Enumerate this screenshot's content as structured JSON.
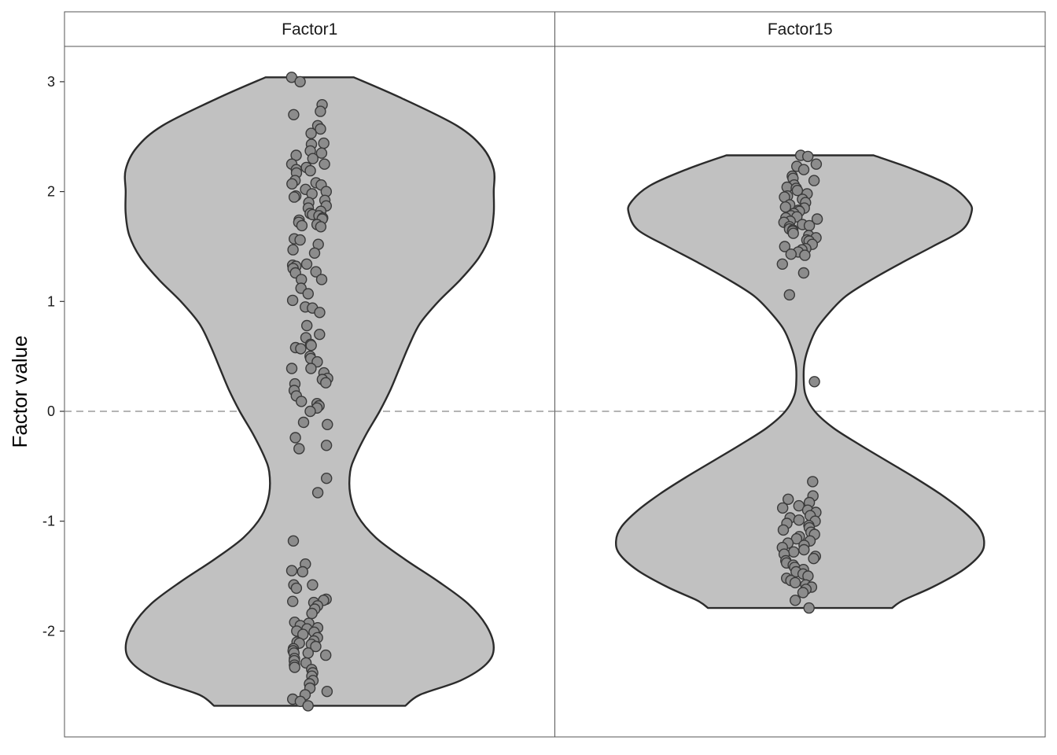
{
  "chart_data": {
    "type": "violin",
    "ylabel": "Factor value",
    "xlabel": "",
    "ylim": [
      -2.95,
      3.33
    ],
    "yticks": [
      3,
      2,
      1,
      0,
      -1,
      -2
    ],
    "ytick_labels": [
      "3",
      "2",
      "1",
      "0",
      "-1",
      "-2"
    ],
    "reference_line": {
      "y": 0,
      "style": "dashed",
      "color": "#888888"
    },
    "grid": false,
    "colors": {
      "violin_fill": "#c1c1c1",
      "violin_stroke": "#2b2b2b",
      "point_fill": "#8c8c8c",
      "point_stroke": "#3a3a3a"
    },
    "panels": [
      {
        "label": "Factor1",
        "range": [
          -2.68,
          3.04
        ],
        "density_profile": [
          [
            3.04,
            0.24
          ],
          [
            2.85,
            0.5
          ],
          [
            2.6,
            0.8
          ],
          [
            2.4,
            0.94
          ],
          [
            2.2,
            1.0
          ],
          [
            2.0,
            1.0
          ],
          [
            1.8,
            1.0
          ],
          [
            1.6,
            0.98
          ],
          [
            1.4,
            0.92
          ],
          [
            1.2,
            0.82
          ],
          [
            1.0,
            0.7
          ],
          [
            0.8,
            0.6
          ],
          [
            0.6,
            0.54
          ],
          [
            0.4,
            0.49
          ],
          [
            0.2,
            0.44
          ],
          [
            0.0,
            0.38
          ],
          [
            -0.2,
            0.31
          ],
          [
            -0.4,
            0.25
          ],
          [
            -0.55,
            0.22
          ],
          [
            -0.75,
            0.22
          ],
          [
            -0.95,
            0.26
          ],
          [
            -1.15,
            0.36
          ],
          [
            -1.35,
            0.52
          ],
          [
            -1.55,
            0.7
          ],
          [
            -1.75,
            0.86
          ],
          [
            -1.95,
            0.96
          ],
          [
            -2.15,
            1.0
          ],
          [
            -2.3,
            0.96
          ],
          [
            -2.45,
            0.82
          ],
          [
            -2.58,
            0.6
          ],
          [
            -2.68,
            0.52
          ]
        ],
        "points": [
          3.04,
          3.0,
          2.79,
          2.73,
          2.7,
          2.6,
          2.57,
          2.53,
          2.43,
          2.44,
          2.37,
          2.35,
          2.33,
          2.3,
          2.25,
          2.25,
          2.22,
          2.2,
          2.19,
          2.17,
          2.1,
          2.08,
          2.07,
          2.06,
          2.02,
          2.0,
          1.98,
          1.96,
          1.95,
          1.92,
          1.9,
          1.87,
          1.85,
          1.82,
          1.8,
          1.79,
          1.78,
          1.76,
          1.75,
          1.74,
          1.72,
          1.7,
          1.69,
          1.68,
          1.57,
          1.56,
          1.52,
          1.47,
          1.44,
          1.34,
          1.33,
          1.32,
          1.3,
          1.27,
          1.26,
          1.2,
          1.2,
          1.12,
          1.07,
          1.01,
          0.95,
          0.94,
          0.9,
          0.78,
          0.7,
          0.67,
          0.61,
          0.6,
          0.58,
          0.57,
          0.5,
          0.48,
          0.45,
          0.39,
          0.39,
          0.35,
          0.3,
          0.29,
          0.26,
          0.25,
          0.19,
          0.14,
          0.09,
          0.07,
          0.05,
          0.03,
          0.0,
          -0.1,
          -0.12,
          -0.24,
          -0.31,
          -0.34,
          -0.61,
          -0.74,
          -1.18,
          -1.39,
          -1.45,
          -1.46,
          -1.58,
          -1.58,
          -1.61,
          -1.71,
          -1.72,
          -1.73,
          -1.74,
          -1.77,
          -1.8,
          -1.84,
          -1.92,
          -1.93,
          -1.95,
          -1.97,
          -1.98,
          -2.0,
          -2.01,
          -2.03,
          -2.06,
          -2.09,
          -2.1,
          -2.11,
          -2.12,
          -2.14,
          -2.16,
          -2.18,
          -2.2,
          -2.2,
          -2.22,
          -2.25,
          -2.27,
          -2.29,
          -2.31,
          -2.33,
          -2.35,
          -2.38,
          -2.41,
          -2.45,
          -2.48,
          -2.52,
          -2.55,
          -2.58,
          -2.62,
          -2.64,
          -2.68
        ]
      },
      {
        "label": "Factor15",
        "range": [
          -1.79,
          2.33
        ],
        "density_profile": [
          [
            2.33,
            0.4
          ],
          [
            2.2,
            0.62
          ],
          [
            2.05,
            0.82
          ],
          [
            1.9,
            0.92
          ],
          [
            1.8,
            0.93
          ],
          [
            1.65,
            0.88
          ],
          [
            1.5,
            0.72
          ],
          [
            1.35,
            0.55
          ],
          [
            1.2,
            0.39
          ],
          [
            1.05,
            0.25
          ],
          [
            0.9,
            0.16
          ],
          [
            0.75,
            0.09
          ],
          [
            0.6,
            0.05
          ],
          [
            0.45,
            0.025
          ],
          [
            0.3,
            0.02
          ],
          [
            0.15,
            0.03
          ],
          [
            0.0,
            0.08
          ],
          [
            -0.15,
            0.18
          ],
          [
            -0.3,
            0.32
          ],
          [
            -0.45,
            0.47
          ],
          [
            -0.6,
            0.62
          ],
          [
            -0.75,
            0.76
          ],
          [
            -0.9,
            0.88
          ],
          [
            -1.05,
            0.97
          ],
          [
            -1.18,
            1.0
          ],
          [
            -1.3,
            0.98
          ],
          [
            -1.45,
            0.88
          ],
          [
            -1.6,
            0.72
          ],
          [
            -1.72,
            0.56
          ],
          [
            -1.79,
            0.5
          ]
        ],
        "points": [
          2.33,
          2.32,
          2.25,
          2.23,
          2.2,
          2.14,
          2.12,
          2.1,
          2.06,
          2.04,
          2.03,
          2.01,
          1.98,
          1.96,
          1.95,
          1.93,
          1.9,
          1.88,
          1.86,
          1.85,
          1.83,
          1.82,
          1.8,
          1.78,
          1.77,
          1.76,
          1.75,
          1.73,
          1.72,
          1.7,
          1.69,
          1.68,
          1.66,
          1.65,
          1.64,
          1.62,
          1.6,
          1.58,
          1.56,
          1.55,
          1.52,
          1.5,
          1.48,
          1.47,
          1.45,
          1.43,
          1.42,
          1.34,
          1.26,
          1.06,
          0.27,
          -0.64,
          -0.77,
          -0.8,
          -0.83,
          -0.86,
          -0.88,
          -0.9,
          -0.92,
          -0.95,
          -0.97,
          -0.99,
          -1.0,
          -1.02,
          -1.04,
          -1.06,
          -1.08,
          -1.1,
          -1.12,
          -1.14,
          -1.16,
          -1.18,
          -1.2,
          -1.22,
          -1.24,
          -1.26,
          -1.28,
          -1.3,
          -1.32,
          -1.34,
          -1.36,
          -1.38,
          -1.4,
          -1.42,
          -1.44,
          -1.46,
          -1.48,
          -1.5,
          -1.52,
          -1.54,
          -1.56,
          -1.58,
          -1.6,
          -1.62,
          -1.65,
          -1.72,
          -1.79
        ]
      }
    ]
  }
}
